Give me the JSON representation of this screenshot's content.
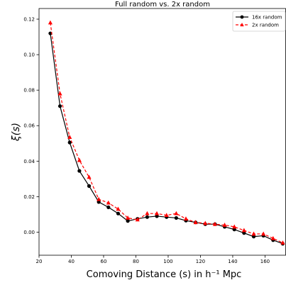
{
  "chart_data": {
    "type": "line",
    "title": "Full random vs. 2x random",
    "xlabel": "Comoving Distance (s) in h⁻¹ Mpc",
    "ylabel": "ξ(s)",
    "xlim": [
      20,
      173
    ],
    "ylim": [
      -0.013,
      0.126
    ],
    "xticks": [
      "20",
      "40",
      "60",
      "80",
      "100",
      "120",
      "140",
      "160"
    ],
    "yticks": [
      "0.00",
      "0.02",
      "0.04",
      "0.06",
      "0.08",
      "0.10",
      "0.12"
    ],
    "legend_position": "top-right",
    "grid": false,
    "series": [
      {
        "name": "16x random",
        "color": "#000000",
        "marker": "circle",
        "linestyle": "solid",
        "x": [
          27,
          33,
          39,
          45,
          51,
          57,
          63,
          69,
          75,
          81,
          87,
          93,
          99,
          105,
          111,
          117,
          123,
          129,
          135,
          141,
          147,
          153,
          159,
          165,
          171
        ],
        "y": [
          0.112,
          0.071,
          0.0505,
          0.0345,
          0.026,
          0.017,
          0.014,
          0.0105,
          0.0063,
          0.0075,
          0.0085,
          0.009,
          0.0085,
          0.008,
          0.0065,
          0.0055,
          0.0045,
          0.0045,
          0.003,
          0.0015,
          -0.0005,
          -0.0025,
          -0.002,
          -0.0045,
          -0.0065
        ]
      },
      {
        "name": "2x random",
        "color": "#ff0000",
        "marker": "triangle",
        "linestyle": "dashed",
        "x": [
          27,
          33,
          39,
          45,
          51,
          57,
          63,
          69,
          75,
          81,
          87,
          93,
          99,
          105,
          111,
          117,
          123,
          129,
          135,
          141,
          147,
          153,
          159,
          165,
          171
        ],
        "y": [
          0.118,
          0.078,
          0.0535,
          0.0405,
          0.031,
          0.0185,
          0.0165,
          0.013,
          0.008,
          0.007,
          0.0105,
          0.0105,
          0.0095,
          0.0105,
          0.0075,
          0.0055,
          0.005,
          0.0045,
          0.004,
          0.003,
          0.001,
          -0.001,
          -0.001,
          -0.0035,
          -0.006
        ]
      }
    ]
  }
}
